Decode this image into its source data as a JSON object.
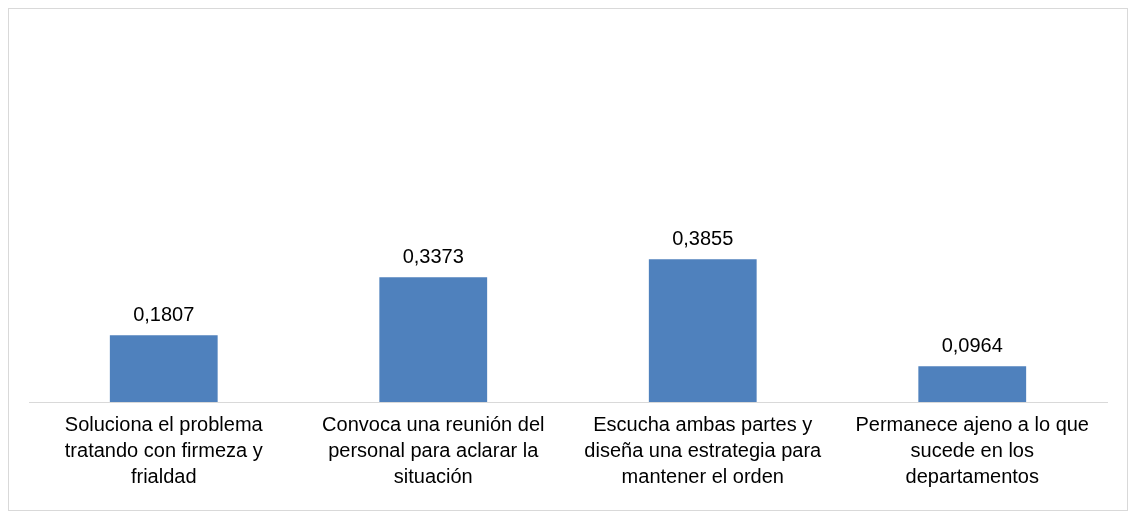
{
  "chart_data": {
    "type": "bar",
    "categories": [
      "Soluciona el problema tratando con firmeza y frialdad",
      "Convoca una reunión del personal para aclarar la situación",
      "Escucha ambas partes y diseña una estrategia para mantener el orden",
      "Permanece ajeno a lo que sucede en los departamentos"
    ],
    "values": [
      0.1807,
      0.3373,
      0.3855,
      0.0964
    ],
    "value_labels": [
      "0,1807",
      "0,3373",
      "0,3855",
      "0,0964"
    ],
    "color": "#4f81bd",
    "grid": false,
    "legend": false
  }
}
